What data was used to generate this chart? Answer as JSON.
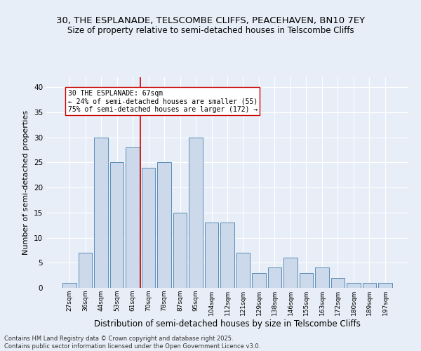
{
  "title": "30, THE ESPLANADE, TELSCOMBE CLIFFS, PEACEHAVEN, BN10 7EY",
  "subtitle": "Size of property relative to semi-detached houses in Telscombe Cliffs",
  "xlabel": "Distribution of semi-detached houses by size in Telscombe Cliffs",
  "ylabel": "Number of semi-detached properties",
  "categories": [
    "27sqm",
    "36sqm",
    "44sqm",
    "53sqm",
    "61sqm",
    "70sqm",
    "78sqm",
    "87sqm",
    "95sqm",
    "104sqm",
    "112sqm",
    "121sqm",
    "129sqm",
    "138sqm",
    "146sqm",
    "155sqm",
    "163sqm",
    "172sqm",
    "180sqm",
    "189sqm",
    "197sqm"
  ],
  "values": [
    1,
    7,
    30,
    25,
    28,
    24,
    25,
    15,
    30,
    13,
    13,
    7,
    3,
    4,
    6,
    3,
    4,
    2,
    1,
    1,
    1
  ],
  "bar_color": "#ccd9ea",
  "bar_edge_color": "#5b8db8",
  "vline_x": 4.5,
  "vline_color": "#cc0000",
  "annotation_text": "30 THE ESPLANADE: 67sqm\n← 24% of semi-detached houses are smaller (55)\n75% of semi-detached houses are larger (172) →",
  "annotation_box_color": "#ffffff",
  "annotation_box_edge_color": "#cc0000",
  "ylim": [
    0,
    42
  ],
  "yticks": [
    0,
    5,
    10,
    15,
    20,
    25,
    30,
    35,
    40
  ],
  "title_fontsize": 9.5,
  "xlabel_fontsize": 8.5,
  "ylabel_fontsize": 8,
  "footer_text": "Contains HM Land Registry data © Crown copyright and database right 2025.\nContains public sector information licensed under the Open Government Licence v3.0.",
  "bg_color": "#e8eef7",
  "plot_bg_color": "#e8eef7"
}
